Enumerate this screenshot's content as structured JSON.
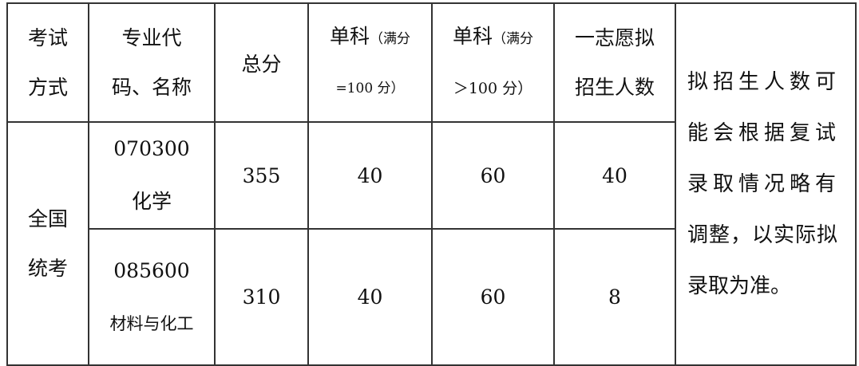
{
  "table": {
    "headers": {
      "exam_method": [
        "考试",
        "方式"
      ],
      "major": [
        "专业代",
        "码、名称"
      ],
      "total": "总分",
      "single_100": [
        "单科",
        "（满分",
        "=100 分）"
      ],
      "single_gt100": [
        "单科",
        "（满分",
        "＞100 分）"
      ],
      "quota": [
        "一志愿拟",
        "招生人数"
      ]
    },
    "exam_method_value": [
      "全国",
      "统考"
    ],
    "rows": [
      {
        "code": "070300",
        "name": "化学",
        "total": "355",
        "single_100": "40",
        "single_gt100": "60",
        "quota": "40"
      },
      {
        "code": "085600",
        "name": "材料与化工",
        "total": "310",
        "single_100": "40",
        "single_gt100": "60",
        "quota": "8"
      }
    ],
    "note": [
      "拟招生人数可",
      "能会根据复试",
      "录取情况略有",
      "调整，以实际拟",
      "录取为准。"
    ]
  }
}
